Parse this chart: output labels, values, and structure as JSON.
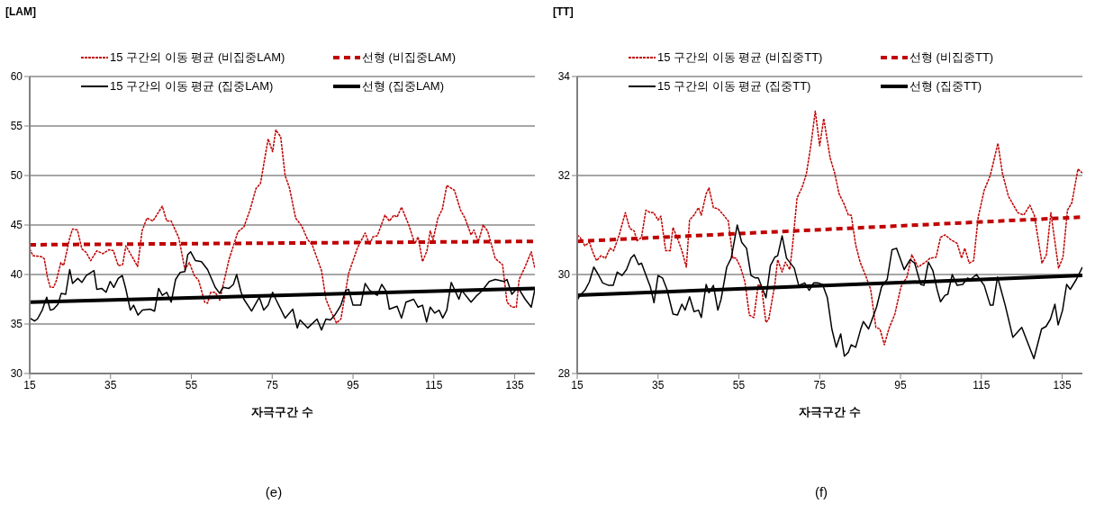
{
  "chart_data": [
    {
      "type": "line",
      "title": "(e)",
      "xlabel": "자극구간 수",
      "ylabel": "[LAM]",
      "xlim": [
        15,
        140
      ],
      "xticks": [
        15,
        35,
        55,
        75,
        95,
        115,
        135
      ],
      "ylim": [
        30,
        60
      ],
      "yticks": [
        30,
        35,
        40,
        45,
        50,
        55,
        60
      ],
      "grid": "y",
      "legend": "top",
      "marker": "none",
      "series": [
        {
          "name": "15 구간의 이동 평균 (비집중LAM)",
          "color": "#c00000",
          "line_style": "dotted",
          "x": [
            15,
            15.8,
            17.9,
            18.6,
            19.4,
            20.1,
            20.9,
            21.6,
            22.7,
            23.4,
            24.9,
            25.6,
            26.8,
            27.9,
            29,
            30.1,
            31.6,
            33.1,
            34.6,
            35.7,
            36.9,
            38,
            38.8,
            40.2,
            41.7,
            42.8,
            44,
            45.5,
            47.8,
            48.9,
            50,
            51.9,
            53.4,
            54.5,
            55.7,
            56.8,
            58.3,
            59,
            59.8,
            60.9,
            62,
            64.3,
            66.5,
            68,
            69.5,
            71,
            72.1,
            74,
            75.1,
            75.9,
            77.1,
            78.2,
            79.3,
            80.8,
            82.3,
            83.8,
            84.9,
            87.2,
            88.3,
            89.4,
            90.9,
            92,
            93.9,
            96.1,
            98,
            99.1,
            99.9,
            101,
            102.9,
            104,
            105.1,
            105.9,
            107,
            108.8,
            110.3,
            111.1,
            112.2,
            113.3,
            114.1,
            114.8,
            116,
            117.1,
            118.2,
            120.1,
            121.6,
            122.7,
            124.2,
            124.9,
            126,
            127.2,
            128.3,
            130.2,
            132,
            133.1,
            134.3,
            135.4,
            136.1,
            137.6,
            139.1,
            140
          ],
          "values": [
            42.6,
            41.9,
            41.8,
            41.6,
            39.7,
            38.7,
            38.7,
            39.4,
            41.2,
            40.9,
            43.7,
            44.6,
            44.5,
            42.6,
            42.2,
            41.4,
            42.4,
            42.1,
            42.5,
            42.4,
            40.9,
            41,
            42.9,
            41.9,
            40.8,
            44.4,
            45.7,
            45.4,
            46.9,
            45.4,
            45.4,
            43.7,
            40.5,
            41.2,
            39.9,
            39.4,
            37.2,
            37.1,
            38.2,
            38.2,
            37.4,
            41.5,
            44.3,
            44.8,
            46.5,
            48.7,
            49.2,
            53.7,
            52.4,
            54.6,
            53.9,
            50,
            48.7,
            45.7,
            44.9,
            43.5,
            43,
            40.4,
            37.5,
            36.4,
            35.1,
            35.5,
            40.1,
            42.7,
            44.2,
            43,
            43.8,
            43.9,
            46,
            45.4,
            46,
            45.8,
            46.8,
            45,
            43.1,
            43.8,
            41.3,
            42.4,
            44.4,
            43.5,
            45.7,
            46.6,
            49,
            48.5,
            46.5,
            45.7,
            44,
            44.5,
            43.3,
            45,
            44.4,
            41.6,
            41,
            37.2,
            36.7,
            36.7,
            39.5,
            40.8,
            42.3,
            40.6
          ]
        },
        {
          "name": "선형 (비집중LAM)",
          "color": "#c00000",
          "line_style": "dashed",
          "x": [
            15,
            140
          ],
          "values": [
            43,
            43.35
          ]
        },
        {
          "name": "15 구간의 이동 평균 (집중LAM)",
          "color": "#000000",
          "line_style": "solid",
          "x": [
            15,
            16.2,
            16.9,
            18.1,
            19.2,
            20.1,
            20.9,
            22,
            22.8,
            23.9,
            24.9,
            25.6,
            26.9,
            27.9,
            29,
            30.9,
            31.6,
            32.8,
            33.9,
            34.9,
            35.8,
            36.9,
            37.9,
            38.8,
            39.9,
            40.7,
            41.8,
            42.9,
            44.8,
            45.9,
            46.9,
            47.8,
            48.9,
            50,
            51.1,
            52.2,
            53.4,
            54.1,
            54.8,
            56,
            57.5,
            59,
            60.9,
            62,
            62.8,
            64.3,
            65.4,
            66.2,
            67.3,
            68,
            69.9,
            71.8,
            72.9,
            74,
            75.1,
            75.9,
            78.2,
            80.1,
            81.2,
            81.9,
            83.8,
            86.1,
            87.2,
            88.3,
            89.4,
            90.5,
            92,
            93.2,
            93.9,
            95,
            96.9,
            98,
            99.1,
            101,
            102.1,
            103.2,
            104,
            105.9,
            107,
            108.1,
            110,
            111.1,
            112.2,
            113.2,
            114.1,
            115.2,
            116.3,
            117.2,
            118.2,
            119.3,
            121.2,
            121.9,
            124.2,
            125.7,
            126.8,
            128.7,
            130.2,
            132.4,
            133.1,
            134.3,
            135.8,
            137.6,
            139.1,
            140
          ],
          "values": [
            35.6,
            35.3,
            35.5,
            36.4,
            37.7,
            36.4,
            36.5,
            37,
            38.1,
            38,
            40.5,
            39.1,
            39.6,
            39.2,
            39.9,
            40.4,
            38.5,
            38.6,
            38.2,
            39.3,
            38.7,
            39.6,
            39.9,
            38.5,
            36.4,
            36.9,
            35.9,
            36.4,
            36.5,
            36.3,
            38.6,
            37.9,
            38.2,
            37.2,
            39.5,
            40.2,
            40.3,
            42,
            42.3,
            41.4,
            41.3,
            40.5,
            38.7,
            38.1,
            38.7,
            38.6,
            39,
            40,
            38.2,
            37.5,
            36.3,
            37.7,
            36.4,
            36.9,
            38.2,
            37.5,
            35.6,
            36.5,
            34.6,
            35.4,
            34.6,
            35.5,
            34.4,
            35.5,
            35.4,
            35.9,
            36.9,
            38.4,
            38.5,
            36.9,
            36.9,
            39.1,
            38.4,
            37.9,
            39,
            38.3,
            36.5,
            36.8,
            35.6,
            37.2,
            37.5,
            36.7,
            36.9,
            35.2,
            36.7,
            36.1,
            36.4,
            35.6,
            36.4,
            39.2,
            37.5,
            38.4,
            37.2,
            37.9,
            38.3,
            39.3,
            39.5,
            39.3,
            39.5,
            38,
            38.7,
            37.5,
            36.7,
            38.5
          ]
        },
        {
          "name": "선형 (집중LAM)",
          "color": "#000000",
          "line_style": "solid",
          "x": [
            15,
            140
          ],
          "values": [
            37.2,
            38.6
          ]
        }
      ]
    },
    {
      "type": "line",
      "title": "(f)",
      "xlabel": "자극구간 수",
      "ylabel": "[TT]",
      "xlim": [
        15,
        140
      ],
      "xticks": [
        15,
        35,
        55,
        75,
        95,
        115,
        135
      ],
      "ylim": [
        28,
        34
      ],
      "yticks": [
        28,
        30,
        32,
        34
      ],
      "grid": "y",
      "legend": "top",
      "marker": "none",
      "series": [
        {
          "name": "15 구간의 이동 평균 (비집중TT)",
          "color": "#c00000",
          "line_style": "dotted",
          "x": [
            15,
            15.7,
            16.9,
            18,
            19.1,
            19.8,
            20.9,
            22,
            23.1,
            24,
            25.4,
            26.9,
            28,
            29.1,
            29.8,
            30.9,
            32,
            33.1,
            33.9,
            35,
            35.7,
            36.9,
            38,
            38.7,
            39.8,
            40.9,
            42,
            42.8,
            43.9,
            45,
            45.7,
            46.9,
            47.6,
            48.7,
            49.8,
            50.9,
            52.4,
            53.5,
            54.3,
            55.4,
            56.5,
            57.6,
            58.7,
            59.8,
            60.6,
            61.7,
            62.4,
            63.9,
            64.6,
            65.7,
            66.5,
            67.6,
            68.3,
            69.4,
            70.6,
            71.7,
            72.8,
            73.9,
            75,
            76,
            77.6,
            78.7,
            79.8,
            81,
            82.1,
            82.8,
            83.9,
            85,
            86.5,
            87.6,
            88.9,
            89.9,
            91,
            92.1,
            93.6,
            95.1,
            96.6,
            97.8,
            99.3,
            101.2,
            102.3,
            103.8,
            104.9,
            106,
            107.5,
            109,
            110.1,
            110.9,
            112,
            113.1,
            114.2,
            115.7,
            117.2,
            119.1,
            120.2,
            121.7,
            124,
            125.5,
            127,
            128.1,
            130,
            131.1,
            132.2,
            134.1,
            135.2,
            136.3,
            137.4,
            138.9,
            140
          ],
          "values": [
            30.8,
            30.75,
            30.58,
            30.65,
            30.4,
            30.28,
            30.38,
            30.33,
            30.53,
            30.48,
            30.8,
            31.25,
            30.93,
            30.88,
            30.68,
            30.75,
            31.3,
            31.25,
            31.25,
            31.1,
            31.18,
            30.48,
            30.48,
            30.95,
            30.73,
            30.48,
            30.15,
            31.1,
            31.2,
            31.35,
            31.2,
            31.63,
            31.75,
            31.35,
            31.33,
            31.23,
            31.08,
            30.33,
            30.33,
            30.15,
            29.85,
            29.18,
            29.13,
            29.8,
            29.75,
            29.03,
            29.1,
            29.8,
            30.3,
            30.05,
            30.25,
            30.1,
            30.6,
            31.55,
            31.75,
            32.03,
            32.6,
            33.3,
            32.6,
            33.15,
            32.35,
            32.05,
            31.63,
            31.43,
            31.2,
            31.2,
            30.6,
            30.25,
            29.95,
            29.7,
            28.93,
            28.9,
            28.58,
            28.9,
            29.2,
            29.75,
            29.95,
            30.4,
            30.15,
            30.25,
            30.33,
            30.35,
            30.75,
            30.8,
            30.7,
            30.63,
            30.33,
            30.53,
            30.23,
            30.28,
            31.15,
            31.7,
            32,
            32.65,
            32.05,
            31.58,
            31.25,
            31.2,
            31.4,
            31.2,
            30.23,
            30.4,
            31.25,
            30.13,
            30.35,
            31.3,
            31.45,
            32.13,
            32.05
          ]
        },
        {
          "name": "선형 (비집중TT)",
          "color": "#c00000",
          "line_style": "dashed",
          "x": [
            15,
            140
          ],
          "values": [
            30.67,
            31.16
          ]
        },
        {
          "name": "15 구간의 이동 평균 (집중TT)",
          "color": "#000000",
          "line_style": "solid",
          "x": [
            15,
            15.7,
            16.9,
            18,
            19.1,
            20.2,
            21.3,
            22.8,
            23.9,
            24.9,
            26.1,
            27.2,
            28.3,
            29.1,
            30.2,
            30.9,
            32.4,
            33.1,
            34,
            35,
            36.1,
            37.2,
            38.7,
            39.8,
            40.9,
            41.7,
            42.8,
            43.9,
            45,
            45.7,
            46.9,
            47.6,
            48.7,
            49.8,
            50.6,
            52,
            53.1,
            54.6,
            55.7,
            56.9,
            58,
            59.1,
            59.8,
            61.7,
            62.8,
            63.9,
            64.6,
            65.7,
            66.8,
            68.7,
            69.8,
            71.3,
            72.4,
            73.5,
            74.6,
            75.7,
            76.9,
            78,
            79.1,
            80.2,
            81.1,
            82.1,
            82.8,
            83.9,
            85.1,
            85.8,
            87.1,
            89.1,
            90.3,
            91.7,
            92.9,
            94,
            95.9,
            97.4,
            98.5,
            100,
            100.8,
            101.9,
            103,
            104.1,
            104.9,
            106,
            106.7,
            107.8,
            109,
            110.4,
            111.6,
            112.3,
            113.8,
            115.7,
            117.2,
            117.9,
            119,
            120.9,
            122.8,
            125,
            128,
            129.9,
            131,
            132.1,
            133.2,
            134,
            135.1,
            136.1,
            137,
            138.5,
            140
          ],
          "values": [
            29.48,
            29.58,
            29.68,
            29.85,
            30.15,
            30,
            29.83,
            29.78,
            29.78,
            30.05,
            29.98,
            30.1,
            30.33,
            30.4,
            30.2,
            30.23,
            29.9,
            29.75,
            29.43,
            29.98,
            29.93,
            29.7,
            29.2,
            29.18,
            29.4,
            29.28,
            29.55,
            29.25,
            29.28,
            29.13,
            29.8,
            29.63,
            29.78,
            29.28,
            29.5,
            30.15,
            30.33,
            31,
            30.65,
            30.53,
            29.98,
            29.93,
            29.93,
            29.53,
            30.18,
            30.35,
            30.38,
            30.78,
            30.33,
            30.13,
            29.78,
            29.83,
            29.68,
            29.83,
            29.83,
            29.8,
            29.53,
            28.9,
            28.53,
            28.8,
            28.35,
            28.43,
            28.58,
            28.53,
            28.88,
            29.05,
            28.9,
            29.35,
            29.75,
            29.9,
            30.5,
            30.53,
            30.1,
            30.3,
            30.23,
            29.8,
            29.78,
            30.25,
            30.08,
            29.68,
            29.45,
            29.58,
            29.6,
            30,
            29.78,
            29.8,
            29.93,
            29.9,
            30,
            29.78,
            29.38,
            29.38,
            29.95,
            29.38,
            28.73,
            28.93,
            28.3,
            28.9,
            28.95,
            29.1,
            29.4,
            28.98,
            29.28,
            29.8,
            29.7,
            29.9,
            30.15
          ]
        },
        {
          "name": "선형 (집중TT)",
          "color": "#000000",
          "line_style": "solid",
          "x": [
            15,
            140
          ],
          "values": [
            29.58,
            29.98
          ]
        }
      ]
    }
  ]
}
